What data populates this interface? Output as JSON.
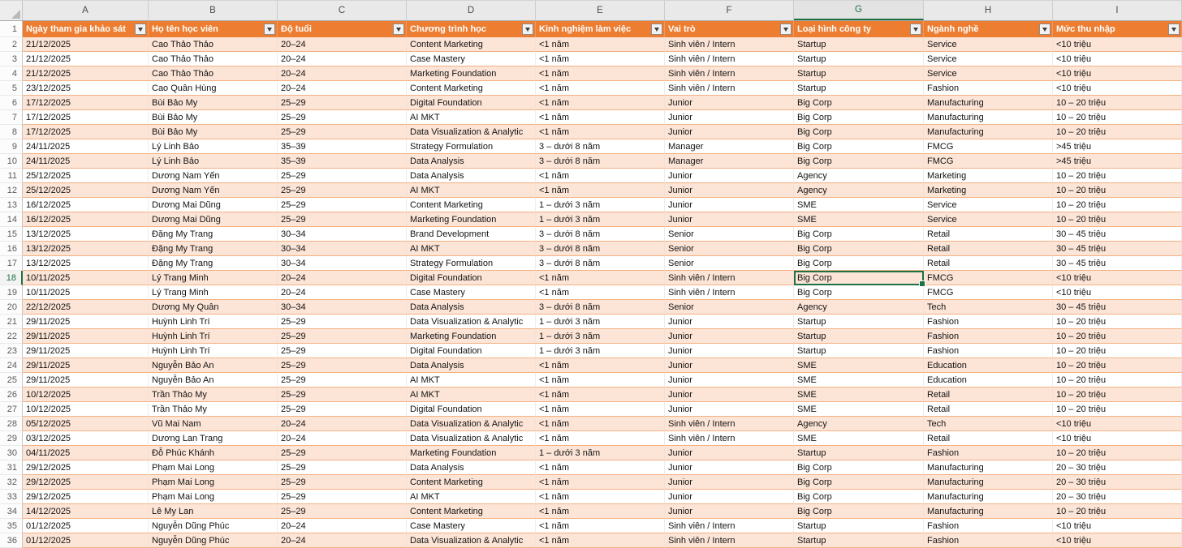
{
  "sheet": {
    "column_letters": [
      "A",
      "B",
      "C",
      "D",
      "E",
      "F",
      "G",
      "H",
      "I"
    ],
    "selected_column": "G",
    "selected_row_number": 18,
    "selected_cell_ref": "G18",
    "selected_cell_value": "Big Corp",
    "first_row_number": 2,
    "header_row_number": 1
  },
  "colors": {
    "header_bg": "#ED7D31",
    "header_text": "#FFFFFF",
    "band_bg": "#FCE4D6",
    "row_border": "#F4B183",
    "selection_green": "#1E7145",
    "column_strip_bg": "#E9E9E9"
  },
  "icons": {
    "filter_dropdown": "filter-dropdown-icon",
    "select_all": "select-all-triangle-icon"
  },
  "table": {
    "headers": [
      "Ngày tham gia khảo sát",
      "Họ tên học viên",
      "Độ tuổi",
      "Chương trình học",
      "Kinh nghiệm làm việc",
      "Vai trò",
      "Loại hình công ty",
      "Ngành nghề",
      "Mức thu nhập"
    ],
    "rows": [
      [
        "21/12/2025",
        "Cao Thảo Thảo",
        "20–24",
        "Content Marketing",
        "<1 năm",
        "Sinh viên / Intern",
        "Startup",
        "Service",
        "<10 triệu"
      ],
      [
        "21/12/2025",
        "Cao Thảo Thảo",
        "20–24",
        "Case Mastery",
        "<1 năm",
        "Sinh viên / Intern",
        "Startup",
        "Service",
        "<10 triệu"
      ],
      [
        "21/12/2025",
        "Cao Thảo Thảo",
        "20–24",
        "Marketing Foundation",
        "<1 năm",
        "Sinh viên / Intern",
        "Startup",
        "Service",
        "<10 triệu"
      ],
      [
        "23/12/2025",
        "Cao Quân Hùng",
        "20–24",
        "Content Marketing",
        "<1 năm",
        "Sinh viên / Intern",
        "Startup",
        "Fashion",
        "<10 triệu"
      ],
      [
        "17/12/2025",
        "Bùi Bảo My",
        "25–29",
        "Digital Foundation",
        "<1 năm",
        "Junior",
        "Big Corp",
        "Manufacturing",
        "10 – 20 triệu"
      ],
      [
        "17/12/2025",
        "Bùi Bảo My",
        "25–29",
        "AI MKT",
        "<1 năm",
        "Junior",
        "Big Corp",
        "Manufacturing",
        "10 – 20 triệu"
      ],
      [
        "17/12/2025",
        "Bùi Bảo My",
        "25–29",
        "Data Visualization & Analytic",
        "<1 năm",
        "Junior",
        "Big Corp",
        "Manufacturing",
        "10 – 20 triệu"
      ],
      [
        "24/11/2025",
        "Lý Linh Bảo",
        "35–39",
        "Strategy Formulation",
        "3 – dưới 8 năm",
        "Manager",
        "Big Corp",
        "FMCG",
        ">45 triệu"
      ],
      [
        "24/11/2025",
        "Lý Linh Bảo",
        "35–39",
        "Data Analysis",
        "3 – dưới 8 năm",
        "Manager",
        "Big Corp",
        "FMCG",
        ">45 triệu"
      ],
      [
        "25/12/2025",
        "Dương Nam Yến",
        "25–29",
        "Data Analysis",
        "<1 năm",
        "Junior",
        "Agency",
        "Marketing",
        "10 – 20 triệu"
      ],
      [
        "25/12/2025",
        "Dương Nam Yến",
        "25–29",
        "AI MKT",
        "<1 năm",
        "Junior",
        "Agency",
        "Marketing",
        "10 – 20 triệu"
      ],
      [
        "16/12/2025",
        "Dương Mai Dũng",
        "25–29",
        "Content Marketing",
        "1 – dưới 3 năm",
        "Junior",
        "SME",
        "Service",
        "10 – 20 triệu"
      ],
      [
        "16/12/2025",
        "Dương Mai Dũng",
        "25–29",
        "Marketing Foundation",
        "1 – dưới 3 năm",
        "Junior",
        "SME",
        "Service",
        "10 – 20 triệu"
      ],
      [
        "13/12/2025",
        "Đặng My Trang",
        "30–34",
        "Brand Development",
        "3 – dưới 8 năm",
        "Senior",
        "Big Corp",
        "Retail",
        "30 – 45 triệu"
      ],
      [
        "13/12/2025",
        "Đặng My Trang",
        "30–34",
        "AI MKT",
        "3 – dưới 8 năm",
        "Senior",
        "Big Corp",
        "Retail",
        "30 – 45 triệu"
      ],
      [
        "13/12/2025",
        "Đặng My Trang",
        "30–34",
        "Strategy Formulation",
        "3 – dưới 8 năm",
        "Senior",
        "Big Corp",
        "Retail",
        "30 – 45 triệu"
      ],
      [
        "10/11/2025",
        "Lý Trang Minh",
        "20–24",
        "Digital Foundation",
        "<1 năm",
        "Sinh viên / Intern",
        "Big Corp",
        "FMCG",
        "<10 triệu"
      ],
      [
        "10/11/2025",
        "Lý Trang Minh",
        "20–24",
        "Case Mastery",
        "<1 năm",
        "Sinh viên / Intern",
        "Big Corp",
        "FMCG",
        "<10 triệu"
      ],
      [
        "22/12/2025",
        "Dương My Quân",
        "30–34",
        "Data Analysis",
        "3 – dưới 8 năm",
        "Senior",
        "Agency",
        "Tech",
        "30 – 45 triệu"
      ],
      [
        "29/11/2025",
        "Huỳnh Linh Trí",
        "25–29",
        "Data Visualization & Analytic",
        "1 – dưới 3 năm",
        "Junior",
        "Startup",
        "Fashion",
        "10 – 20 triệu"
      ],
      [
        "29/11/2025",
        "Huỳnh Linh Trí",
        "25–29",
        "Marketing Foundation",
        "1 – dưới 3 năm",
        "Junior",
        "Startup",
        "Fashion",
        "10 – 20 triệu"
      ],
      [
        "29/11/2025",
        "Huỳnh Linh Trí",
        "25–29",
        "Digital Foundation",
        "1 – dưới 3 năm",
        "Junior",
        "Startup",
        "Fashion",
        "10 – 20 triệu"
      ],
      [
        "29/11/2025",
        "Nguyễn Bảo An",
        "25–29",
        "Data Analysis",
        "<1 năm",
        "Junior",
        "SME",
        "Education",
        "10 – 20 triệu"
      ],
      [
        "29/11/2025",
        "Nguyễn Bảo An",
        "25–29",
        "AI MKT",
        "<1 năm",
        "Junior",
        "SME",
        "Education",
        "10 – 20 triệu"
      ],
      [
        "10/12/2025",
        "Trần Thảo My",
        "25–29",
        "AI MKT",
        "<1 năm",
        "Junior",
        "SME",
        "Retail",
        "10 – 20 triệu"
      ],
      [
        "10/12/2025",
        "Trần Thảo My",
        "25–29",
        "Digital Foundation",
        "<1 năm",
        "Junior",
        "SME",
        "Retail",
        "10 – 20 triệu"
      ],
      [
        "05/12/2025",
        "Vũ Mai Nam",
        "20–24",
        "Data Visualization & Analytic",
        "<1 năm",
        "Sinh viên / Intern",
        "Agency",
        "Tech",
        "<10 triệu"
      ],
      [
        "03/12/2025",
        "Dương Lan Trang",
        "20–24",
        "Data Visualization & Analytic",
        "<1 năm",
        "Sinh viên / Intern",
        "SME",
        "Retail",
        "<10 triệu"
      ],
      [
        "04/11/2025",
        "Đỗ Phúc Khánh",
        "25–29",
        "Marketing Foundation",
        "1 – dưới 3 năm",
        "Junior",
        "Startup",
        "Fashion",
        "10 – 20 triệu"
      ],
      [
        "29/12/2025",
        "Phạm Mai Long",
        "25–29",
        "Data Analysis",
        "<1 năm",
        "Junior",
        "Big Corp",
        "Manufacturing",
        "20 – 30 triệu"
      ],
      [
        "29/12/2025",
        "Phạm Mai Long",
        "25–29",
        "Content Marketing",
        "<1 năm",
        "Junior",
        "Big Corp",
        "Manufacturing",
        "20 – 30 triệu"
      ],
      [
        "29/12/2025",
        "Phạm Mai Long",
        "25–29",
        "AI MKT",
        "<1 năm",
        "Junior",
        "Big Corp",
        "Manufacturing",
        "20 – 30 triệu"
      ],
      [
        "14/12/2025",
        "Lê My Lan",
        "25–29",
        "Content Marketing",
        "<1 năm",
        "Junior",
        "Big Corp",
        "Manufacturing",
        "10 – 20 triệu"
      ],
      [
        "01/12/2025",
        "Nguyễn Dũng Phúc",
        "20–24",
        "Case Mastery",
        "<1 năm",
        "Sinh viên / Intern",
        "Startup",
        "Fashion",
        "<10 triệu"
      ],
      [
        "01/12/2025",
        "Nguyễn Dũng Phúc",
        "20–24",
        "Data Visualization & Analytic",
        "<1 năm",
        "Sinh viên / Intern",
        "Startup",
        "Fashion",
        "<10 triệu"
      ]
    ]
  }
}
